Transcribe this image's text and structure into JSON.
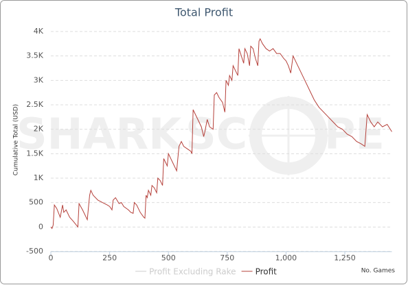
{
  "chart_data": {
    "type": "line",
    "title": "Total Profit",
    "ylabel": "Cumulative Total (USD)",
    "xlabel": "No. Games",
    "watermark": [
      "SHARK",
      "SC",
      "PE"
    ],
    "xlim": [
      0,
      1450
    ],
    "ylim": [
      -500,
      4000
    ],
    "xticks": [
      0,
      250,
      500,
      750,
      {
        "value": 1000,
        "label": "1,000"
      },
      {
        "value": 1250,
        "label": "1,250"
      }
    ],
    "yticks": [
      -500,
      0,
      500,
      {
        "value": 1000,
        "label": "1K"
      },
      {
        "value": 1500,
        "label": "1.5K"
      },
      {
        "value": 2000,
        "label": "2K"
      },
      {
        "value": 2500,
        "label": "2.5K"
      },
      {
        "value": 3000,
        "label": "3K"
      },
      {
        "value": 3500,
        "label": "3.5K"
      },
      {
        "value": 4000,
        "label": "4K"
      }
    ],
    "grid": true,
    "legend": "bottom",
    "x": [
      0,
      5,
      10,
      15,
      25,
      40,
      50,
      55,
      65,
      80,
      95,
      110,
      115,
      120,
      135,
      150,
      155,
      165,
      170,
      180,
      200,
      220,
      240,
      250,
      260,
      265,
      275,
      290,
      300,
      310,
      330,
      340,
      350,
      355,
      365,
      380,
      395,
      400,
      405,
      410,
      415,
      425,
      430,
      440,
      450,
      455,
      465,
      475,
      480,
      490,
      495,
      500,
      510,
      520,
      530,
      535,
      545,
      555,
      565,
      580,
      595,
      600,
      605,
      615,
      625,
      640,
      650,
      655,
      665,
      675,
      690,
      695,
      705,
      715,
      730,
      740,
      745,
      755,
      760,
      770,
      775,
      785,
      795,
      800,
      810,
      820,
      825,
      835,
      845,
      850,
      860,
      870,
      880,
      885,
      890,
      900,
      915,
      930,
      945,
      960,
      975,
      990,
      1000,
      1010,
      1020,
      1030,
      1040,
      1060,
      1080,
      1100,
      1120,
      1140,
      1160,
      1180,
      1200,
      1220,
      1240,
      1260,
      1280,
      1300,
      1320,
      1335,
      1345,
      1360,
      1375,
      1390,
      1410,
      1430,
      1450
    ],
    "series": [
      {
        "name": "Profit Excluding Rake",
        "color": "#cccccc",
        "visible": false
      },
      {
        "name": "Profit",
        "color": "#b5403a",
        "values": [
          0,
          -30,
          40,
          450,
          380,
          200,
          450,
          300,
          350,
          200,
          120,
          30,
          0,
          480,
          350,
          200,
          150,
          650,
          750,
          650,
          550,
          500,
          450,
          420,
          350,
          550,
          600,
          480,
          500,
          420,
          350,
          300,
          280,
          500,
          450,
          300,
          200,
          180,
          650,
          600,
          750,
          650,
          850,
          800,
          700,
          1000,
          950,
          850,
          1400,
          1300,
          1250,
          1500,
          1400,
          1300,
          1200,
          1150,
          1650,
          1750,
          1650,
          1600,
          1550,
          1500,
          2400,
          2300,
          2200,
          2050,
          1850,
          1950,
          2200,
          2050,
          2000,
          2700,
          2750,
          2650,
          2550,
          2350,
          3000,
          2900,
          3100,
          3000,
          3300,
          3200,
          3100,
          3650,
          3500,
          3350,
          3650,
          3550,
          3300,
          3700,
          3650,
          3450,
          3300,
          3800,
          3850,
          3750,
          3650,
          3600,
          3650,
          3550,
          3550,
          3450,
          3400,
          3300,
          3150,
          3500,
          3400,
          3200,
          3000,
          2800,
          2600,
          2450,
          2350,
          2250,
          2150,
          2050,
          2000,
          1900,
          1850,
          1750,
          1700,
          1650,
          2300,
          2150,
          2050,
          2150,
          2050,
          2100,
          1950
        ]
      }
    ]
  }
}
